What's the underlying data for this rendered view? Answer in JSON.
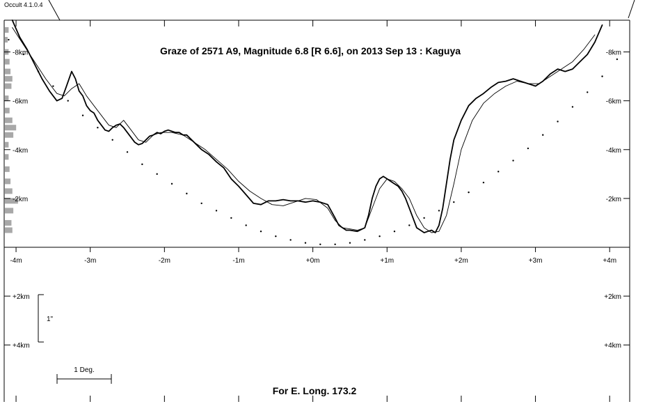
{
  "app": {
    "version": "Occult 4.1.0.4"
  },
  "chart_data": {
    "type": "line",
    "title": "Graze of  2571 A9,  Magnitude 6.8 [R 6.6],  on 2013 Sep 13  :  Kaguya",
    "footer": "For E. Long. 173.2",
    "scale_bar_arcsec": "1\"",
    "scale_bar_deg": "1 Deg.",
    "x_ticks": [
      {
        "v": -4,
        "label": "-4m"
      },
      {
        "v": -3,
        "label": "-3m"
      },
      {
        "v": -2,
        "label": "-2m"
      },
      {
        "v": -1,
        "label": "-1m"
      },
      {
        "v": 0,
        "label": "+0m"
      },
      {
        "v": 1,
        "label": "+1m"
      },
      {
        "v": 2,
        "label": "+2m"
      },
      {
        "v": 3,
        "label": "+3m"
      },
      {
        "v": 4,
        "label": "+4m"
      }
    ],
    "y_ticks_left": [
      {
        "v": -8,
        "label": "-8km"
      },
      {
        "v": -6,
        "label": "-6km"
      },
      {
        "v": -4,
        "label": "-4km"
      },
      {
        "v": -2,
        "label": "-2km"
      }
    ],
    "y_ticks_right": [
      {
        "v": -8,
        "label": "-8km"
      },
      {
        "v": -6,
        "label": "-6km"
      },
      {
        "v": -4,
        "label": "-4km"
      },
      {
        "v": -2,
        "label": "-2km"
      }
    ],
    "lower_ticks_left": [
      {
        "v": 2,
        "label": "+2km"
      },
      {
        "v": 4,
        "label": "+4km"
      }
    ],
    "lower_ticks_right": [
      {
        "v": 2,
        "label": "+2km"
      },
      {
        "v": 4,
        "label": "+4km"
      }
    ],
    "xlim": [
      -4.16,
      4.27
    ],
    "ylim": [
      0,
      -9.3
    ],
    "series": [
      {
        "style": "thick",
        "x": [
          -4.05,
          -3.95,
          -3.85,
          -3.75,
          -3.65,
          -3.55,
          -3.45,
          -3.38,
          -3.32,
          -3.25,
          -3.2,
          -3.15,
          -3.1,
          -3.05,
          -3.0,
          -2.95,
          -2.9,
          -2.85,
          -2.8,
          -2.75,
          -2.7,
          -2.65,
          -2.6,
          -2.55,
          -2.5,
          -2.45,
          -2.4,
          -2.35,
          -2.3,
          -2.25,
          -2.2,
          -2.15,
          -2.1,
          -2.05,
          -2.0,
          -1.95,
          -1.9,
          -1.85,
          -1.8,
          -1.75,
          -1.7,
          -1.6,
          -1.5,
          -1.4,
          -1.3,
          -1.2,
          -1.1,
          -1.0,
          -0.9,
          -0.8,
          -0.7,
          -0.6,
          -0.5,
          -0.4,
          -0.3,
          -0.2,
          -0.1,
          0.0,
          0.1,
          0.2,
          0.3,
          0.35,
          0.4,
          0.45,
          0.5,
          0.6,
          0.7,
          0.75,
          0.8,
          0.85,
          0.9,
          0.95,
          1.0,
          1.05,
          1.1,
          1.15,
          1.2,
          1.25,
          1.3,
          1.35,
          1.4,
          1.45,
          1.5,
          1.55,
          1.6,
          1.65,
          1.7,
          1.75,
          1.8,
          1.85,
          1.9,
          2.0,
          2.1,
          2.2,
          2.3,
          2.4,
          2.5,
          2.6,
          2.7,
          2.8,
          2.9,
          3.0,
          3.1,
          3.2,
          3.3,
          3.4,
          3.5,
          3.6,
          3.7,
          3.8,
          3.9
        ],
        "y": [
          -9.3,
          -8.6,
          -8.1,
          -7.5,
          -6.9,
          -6.4,
          -6.0,
          -6.1,
          -6.6,
          -7.2,
          -6.9,
          -6.4,
          -6.2,
          -5.8,
          -5.6,
          -5.5,
          -5.2,
          -5.0,
          -4.8,
          -4.75,
          -4.9,
          -5.0,
          -5.05,
          -4.9,
          -4.7,
          -4.5,
          -4.3,
          -4.2,
          -4.25,
          -4.4,
          -4.55,
          -4.6,
          -4.7,
          -4.65,
          -4.75,
          -4.8,
          -4.75,
          -4.7,
          -4.7,
          -4.6,
          -4.6,
          -4.3,
          -4.0,
          -3.8,
          -3.5,
          -3.25,
          -2.8,
          -2.5,
          -2.15,
          -1.8,
          -1.75,
          -1.9,
          -1.9,
          -1.95,
          -1.9,
          -1.9,
          -1.85,
          -1.9,
          -1.85,
          -1.75,
          -1.2,
          -0.9,
          -0.8,
          -0.7,
          -0.7,
          -0.65,
          -0.8,
          -1.3,
          -2.0,
          -2.5,
          -2.8,
          -2.9,
          -2.8,
          -2.7,
          -2.6,
          -2.5,
          -2.3,
          -2.0,
          -1.6,
          -1.2,
          -0.8,
          -0.7,
          -0.6,
          -0.65,
          -0.7,
          -0.6,
          -0.9,
          -1.6,
          -2.6,
          -3.6,
          -4.4,
          -5.2,
          -5.8,
          -6.1,
          -6.3,
          -6.55,
          -6.75,
          -6.8,
          -6.9,
          -6.8,
          -6.7,
          -6.6,
          -6.8,
          -7.1,
          -7.3,
          -7.2,
          -7.3,
          -7.6,
          -7.9,
          -8.4,
          -9.1
        ]
      },
      {
        "style": "thin",
        "x": [
          -4.05,
          -3.9,
          -3.75,
          -3.6,
          -3.45,
          -3.35,
          -3.25,
          -3.15,
          -3.05,
          -2.95,
          -2.85,
          -2.75,
          -2.65,
          -2.55,
          -2.45,
          -2.35,
          -2.25,
          -2.15,
          -2.05,
          -1.9,
          -1.75,
          -1.6,
          -1.45,
          -1.3,
          -1.15,
          -1.0,
          -0.85,
          -0.7,
          -0.55,
          -0.4,
          -0.25,
          -0.1,
          0.05,
          0.2,
          0.3,
          0.4,
          0.5,
          0.6,
          0.7,
          0.8,
          0.9,
          1.0,
          1.1,
          1.2,
          1.3,
          1.4,
          1.5,
          1.6,
          1.7,
          1.8,
          1.9,
          2.0,
          2.15,
          2.3,
          2.45,
          2.6,
          2.75,
          2.9,
          3.05,
          3.2,
          3.35,
          3.5,
          3.65,
          3.8
        ],
        "y": [
          -9.0,
          -8.3,
          -7.6,
          -6.9,
          -6.3,
          -6.2,
          -6.5,
          -6.7,
          -6.2,
          -5.8,
          -5.4,
          -5.0,
          -4.9,
          -5.2,
          -4.8,
          -4.4,
          -4.3,
          -4.6,
          -4.7,
          -4.7,
          -4.6,
          -4.3,
          -4.0,
          -3.6,
          -3.2,
          -2.7,
          -2.3,
          -2.0,
          -1.75,
          -1.7,
          -1.85,
          -2.0,
          -1.95,
          -1.6,
          -1.1,
          -0.8,
          -0.75,
          -0.7,
          -0.8,
          -1.6,
          -2.4,
          -2.8,
          -2.7,
          -2.4,
          -2.0,
          -1.3,
          -0.8,
          -0.6,
          -0.65,
          -1.3,
          -2.6,
          -4.0,
          -5.2,
          -5.9,
          -6.3,
          -6.6,
          -6.8,
          -6.7,
          -6.7,
          -7.0,
          -7.3,
          -7.6,
          -8.1,
          -8.7
        ]
      },
      {
        "style": "dotted",
        "x": [
          -4.3,
          -4.1,
          -3.9,
          -3.7,
          -3.5,
          -3.3,
          -3.1,
          -2.9,
          -2.7,
          -2.5,
          -2.3,
          -2.1,
          -1.9,
          -1.7,
          -1.5,
          -1.3,
          -1.1,
          -0.9,
          -0.7,
          -0.5,
          -0.3,
          -0.1,
          0.1,
          0.3,
          0.5,
          0.7,
          0.9,
          1.1,
          1.3,
          1.5,
          1.7,
          1.9,
          2.1,
          2.3,
          2.5,
          2.7,
          2.9,
          3.1,
          3.3,
          3.5,
          3.7,
          3.9,
          4.1,
          4.3
        ],
        "y": [
          -9.2,
          -8.5,
          -7.9,
          -7.2,
          -6.6,
          -6.0,
          -5.4,
          -4.9,
          -4.4,
          -3.9,
          -3.4,
          -3.0,
          -2.6,
          -2.2,
          -1.8,
          -1.5,
          -1.2,
          -0.9,
          -0.65,
          -0.45,
          -0.3,
          -0.18,
          -0.12,
          -0.12,
          -0.18,
          -0.3,
          -0.45,
          -0.65,
          -0.9,
          -1.2,
          -1.5,
          -1.85,
          -2.25,
          -2.65,
          -3.1,
          -3.55,
          -4.05,
          -4.6,
          -5.15,
          -5.75,
          -6.35,
          -7.0,
          -7.7,
          -8.4
        ]
      }
    ],
    "profile_histogram": [
      {
        "y": -8.9,
        "len": 4
      },
      {
        "y": -8.5,
        "len": 3
      },
      {
        "y": -8.0,
        "len": 4
      },
      {
        "y": -7.6,
        "len": 5
      },
      {
        "y": -7.2,
        "len": 6
      },
      {
        "y": -6.9,
        "len": 8
      },
      {
        "y": -6.6,
        "len": 7
      },
      {
        "y": -6.1,
        "len": 4
      },
      {
        "y": -5.6,
        "len": 5
      },
      {
        "y": -5.2,
        "len": 8
      },
      {
        "y": -4.9,
        "len": 12
      },
      {
        "y": -4.6,
        "len": 9
      },
      {
        "y": -4.2,
        "len": 4
      },
      {
        "y": -3.7,
        "len": 4
      },
      {
        "y": -3.2,
        "len": 5
      },
      {
        "y": -2.7,
        "len": 6
      },
      {
        "y": -2.3,
        "len": 8
      },
      {
        "y": -1.9,
        "len": 14
      },
      {
        "y": -1.5,
        "len": 9
      },
      {
        "y": -1.0,
        "len": 7
      },
      {
        "y": -0.7,
        "len": 8
      }
    ]
  }
}
